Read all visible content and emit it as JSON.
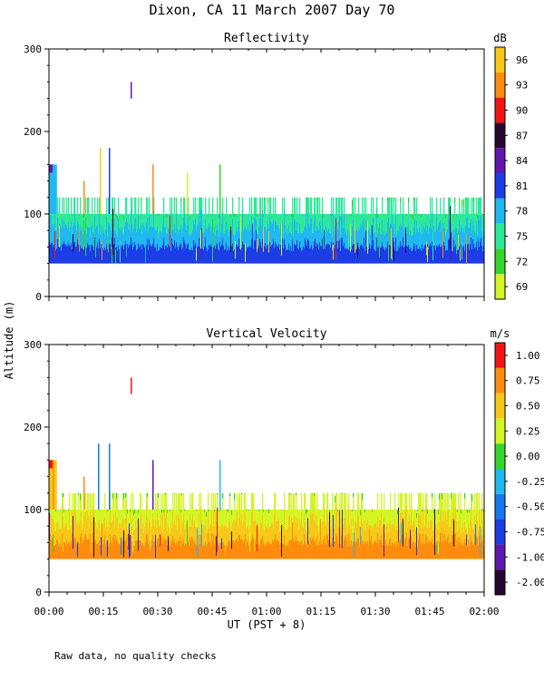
{
  "page_title": "Dixon, CA 11 March 2007  Day  70",
  "shared_ylabel": "Altitude (m)",
  "shared_xlabel": "UT  (PST + 8)",
  "footnote": "Raw data, no quality checks",
  "chart_data": [
    {
      "type": "heatmap",
      "title": "Reflectivity",
      "units": "dB",
      "x_tick_labels": [
        "00:00",
        "00:15",
        "00:30",
        "00:45",
        "01:00",
        "01:15",
        "01:30",
        "01:45",
        "02:00"
      ],
      "x_range_minutes": [
        0,
        120
      ],
      "y_range": [
        0,
        300
      ],
      "y_ticks": [
        0,
        100,
        200,
        300
      ],
      "y_tick_labels": [
        "0",
        "100",
        "200",
        "300"
      ],
      "colorbar": {
        "levels": [
          69,
          72,
          75,
          78,
          81,
          84,
          87,
          90,
          93,
          96
        ],
        "labels": [
          "69",
          "72",
          "75",
          "78",
          "81",
          "84",
          "87",
          "90",
          "93",
          "96"
        ],
        "colors": [
          "#d4f524",
          "#34d42a",
          "#2ee89a",
          "#20b8f0",
          "#1c3ce8",
          "#6018b0",
          "#28082e",
          "#f21414",
          "#ff8c0c",
          "#f8c818"
        ]
      },
      "field": {
        "main_bottom_m": 40,
        "main_top_m": 100,
        "main_top_var_m": 120,
        "spikes": [
          {
            "t": 1,
            "top": 160
          },
          {
            "t": 9.5,
            "top": 140
          },
          {
            "t": 14,
            "top": 180
          },
          {
            "t": 16.5,
            "top": 180
          },
          {
            "t": 22.5,
            "top": 260
          },
          {
            "t": 28.5,
            "top": 160
          },
          {
            "t": 38,
            "top": 150
          },
          {
            "t": 47,
            "top": 160
          }
        ],
        "fill_colors": {
          "low": "#1c3ce8",
          "mid": "#20b8f0",
          "upper": "#2ee89a",
          "top": "#34d42a"
        }
      }
    },
    {
      "type": "heatmap",
      "title": "Vertical Velocity",
      "units": "m/s",
      "x_tick_labels": [
        "00:00",
        "00:15",
        "00:30",
        "00:45",
        "01:00",
        "01:15",
        "01:30",
        "01:45",
        "02:00"
      ],
      "x_range_minutes": [
        0,
        120
      ],
      "y_range": [
        0,
        300
      ],
      "y_ticks": [
        0,
        100,
        200,
        300
      ],
      "y_tick_labels": [
        "0",
        "100",
        "200",
        "300"
      ],
      "colorbar": {
        "levels": [
          -2.0,
          -1.0,
          -0.75,
          -0.5,
          -0.25,
          0.0,
          0.25,
          0.5,
          0.75,
          1.0
        ],
        "labels": [
          "-2.00",
          "-1.00",
          "-0.75",
          "-0.50",
          "-0.25",
          "0.00",
          "0.25",
          "0.50",
          "0.75",
          "1.00"
        ],
        "colors": [
          "#28082e",
          "#6018b0",
          "#1c3ce8",
          "#1478f0",
          "#20b8f0",
          "#34d42a",
          "#d4f524",
          "#f8c818",
          "#ff8c0c",
          "#f21414"
        ]
      },
      "field": {
        "main_bottom_m": 40,
        "main_top_m": 100,
        "main_top_var_m": 120,
        "spikes": [
          {
            "t": 1,
            "top": 160
          },
          {
            "t": 9.5,
            "top": 140
          },
          {
            "t": 13.5,
            "top": 180
          },
          {
            "t": 16.5,
            "top": 180
          },
          {
            "t": 22.5,
            "top": 260
          },
          {
            "t": 28.5,
            "top": 160
          },
          {
            "t": 47,
            "top": 160
          }
        ],
        "fill_colors": {
          "low": "#ff8c0c",
          "mid": "#f8c818",
          "upper": "#d4f524",
          "top": "#34d42a"
        }
      }
    }
  ]
}
